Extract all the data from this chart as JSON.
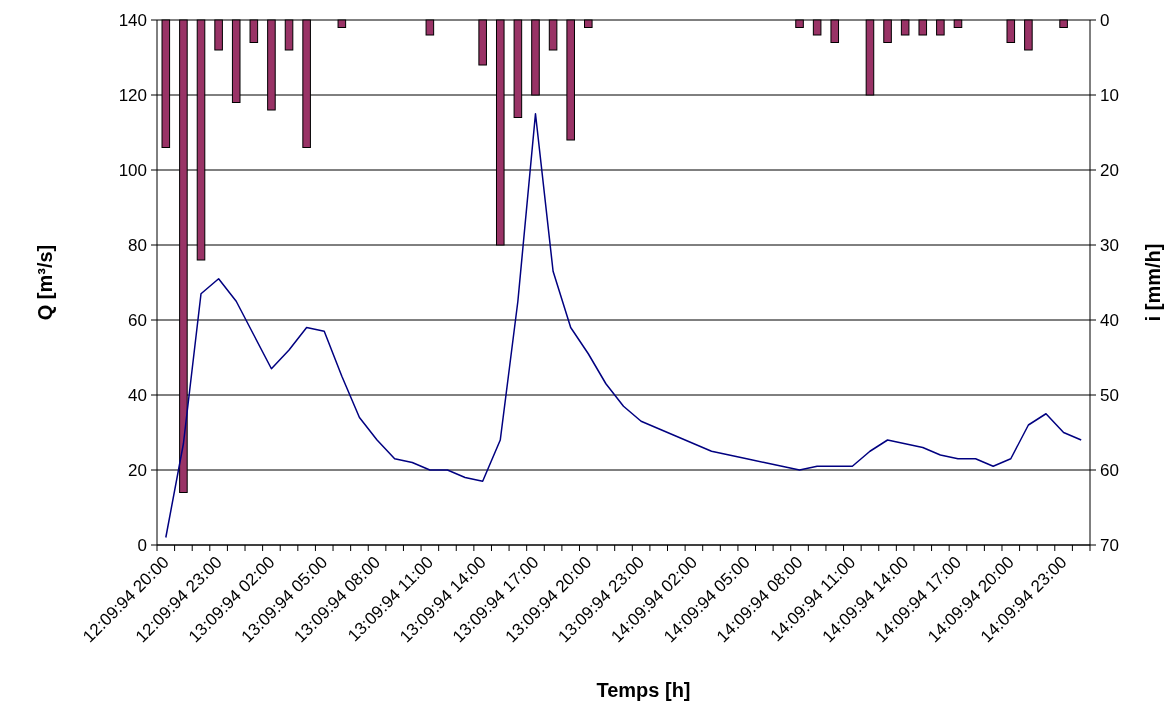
{
  "chart_data": {
    "type": "line",
    "xlabel": "Temps [h]",
    "ylabel": "Q [m³/s]",
    "y2label": "i [mm/h]",
    "categories": [
      "12:09:94 20:00",
      null,
      null,
      "12:09:94 23:00",
      null,
      null,
      "13:09:94 02:00",
      null,
      null,
      "13:09:94 05:00",
      null,
      null,
      "13:09:94 08:00",
      null,
      null,
      "13:09:94 11:00",
      null,
      null,
      "13:09:94 14:00",
      null,
      null,
      "13:09:94 17:00",
      null,
      null,
      "13:09:94 20:00",
      null,
      null,
      "13:09:94 23:00",
      null,
      null,
      "14:09:94 02:00",
      null,
      null,
      "14:09:94 05:00",
      null,
      null,
      "14:09:94 08:00",
      null,
      null,
      "14:09:94 11:00",
      null,
      null,
      "14:09:94 14:00",
      null,
      null,
      "14:09:94 17:00",
      null,
      null,
      "14:09:94 20:00",
      null,
      null,
      "14:09:94 23:00",
      null
    ],
    "series": [
      {
        "type": "bar",
        "axis": "y2",
        "color": "#993366",
        "values": [
          17,
          63,
          32,
          4,
          11,
          3,
          12,
          4,
          17,
          null,
          1,
          null,
          null,
          null,
          null,
          2,
          null,
          null,
          6,
          30,
          13,
          10,
          4,
          16,
          1,
          null,
          null,
          null,
          null,
          null,
          null,
          null,
          null,
          null,
          null,
          null,
          1,
          2,
          3,
          null,
          10,
          3,
          2,
          2,
          2,
          1,
          null,
          null,
          3,
          4,
          null,
          1,
          null
        ]
      },
      {
        "color": "#000080",
        "values": [
          2,
          27,
          67,
          71,
          65,
          56,
          47,
          52,
          58,
          57,
          45,
          34,
          28,
          23,
          22,
          20,
          20,
          18,
          17,
          28,
          65,
          115,
          73,
          58,
          51,
          43,
          37,
          33,
          31,
          29,
          27,
          25,
          24,
          23,
          22,
          21,
          20,
          21,
          21,
          21,
          25,
          28,
          27,
          26,
          24,
          23,
          23,
          21,
          23,
          32,
          35,
          30,
          28
        ]
      }
    ],
    "ylim": [
      0,
      140
    ],
    "yticks": [
      0,
      20,
      40,
      60,
      80,
      100,
      120,
      140
    ],
    "y2lim": [
      70,
      0
    ],
    "y2ticks": [
      0,
      10,
      20,
      30,
      40,
      50,
      60,
      70
    ],
    "grid": "y",
    "marker": "none",
    "line_style": "solid"
  }
}
